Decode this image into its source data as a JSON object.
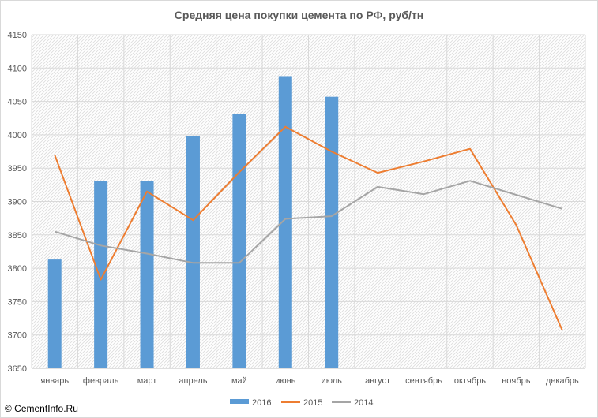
{
  "watermark": "© CementInfo.Ru",
  "chart_data": {
    "type": "bar",
    "title": "Средняя цена покупки цемента по РФ, руб/тн",
    "xlabel": "",
    "ylabel": "",
    "categories": [
      "январь",
      "февраль",
      "март",
      "апрель",
      "май",
      "июнь",
      "июль",
      "август",
      "сентябрь",
      "октябрь",
      "ноябрь",
      "декабрь"
    ],
    "ylim": [
      3650,
      4150
    ],
    "yticks": [
      3650,
      3700,
      3750,
      3800,
      3850,
      3900,
      3950,
      4000,
      4050,
      4100,
      4150
    ],
    "grid": true,
    "legend_position": "bottom",
    "series": [
      {
        "name": "2016",
        "kind": "bar",
        "color": "#5b9bd5",
        "values": [
          3813,
          3931,
          3931,
          3998,
          4031,
          4088,
          4057,
          null,
          null,
          null,
          null,
          null
        ]
      },
      {
        "name": "2015",
        "kind": "line",
        "color": "#ed7d31",
        "values": [
          3970,
          3783,
          3915,
          3872,
          3944,
          4012,
          3975,
          3943,
          3960,
          3979,
          3865,
          3707
        ]
      },
      {
        "name": "2014",
        "kind": "line",
        "color": "#a5a5a5",
        "values": [
          3855,
          3834,
          3822,
          3808,
          3808,
          3874,
          3878,
          3922,
          3911,
          3931,
          3910,
          3889
        ]
      }
    ]
  }
}
